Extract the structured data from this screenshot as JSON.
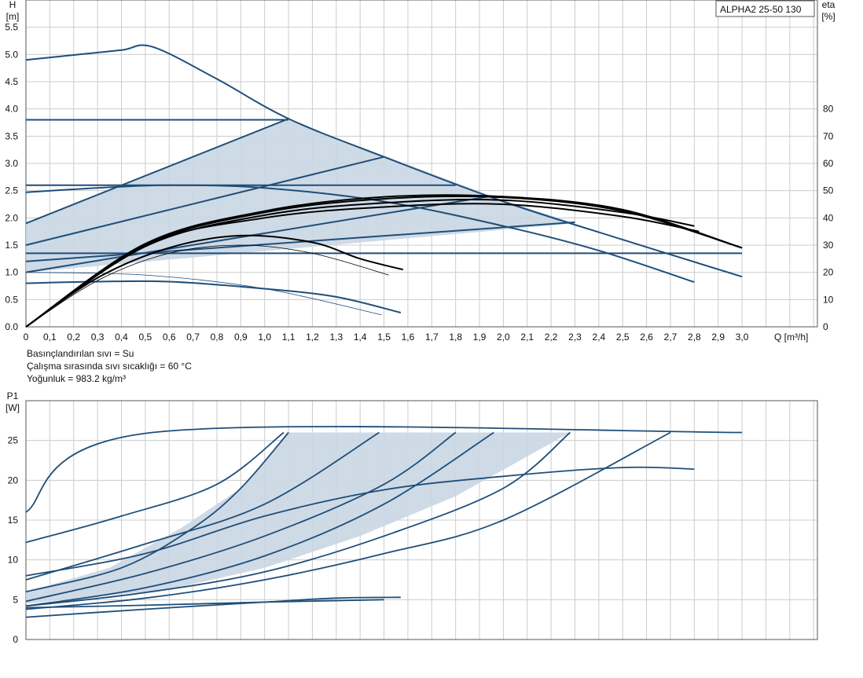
{
  "chart_data": [
    {
      "type": "line",
      "id": "head_efficiency",
      "badge": "ALPHA2 25-50 130",
      "ylabel_lines": [
        "H",
        "[m]"
      ],
      "y2label_lines": [
        "eta",
        "[%]"
      ],
      "xlabel": "Q [m³/h]",
      "xlim": [
        0,
        3.3
      ],
      "ylim": [
        0,
        6.0
      ],
      "y2lim": [
        0,
        120
      ],
      "x_ticks": [
        "0",
        "0,1",
        "0,2",
        "0,3",
        "0,4",
        "0,5",
        "0,6",
        "0,7",
        "0,8",
        "0,9",
        "1,0",
        "1,1",
        "1,2",
        "1,3",
        "1,4",
        "1,5",
        "1,6",
        "1,7",
        "1,8",
        "1,9",
        "2,0",
        "2,1",
        "2,2",
        "2,3",
        "2,4",
        "2,5",
        "2,6",
        "2,7",
        "2,8",
        "2,9",
        "3,0"
      ],
      "y_ticks": [
        "0.0",
        "0.5",
        "1.0",
        "1.5",
        "2.0",
        "2.5",
        "3.0",
        "3.5",
        "4.0",
        "4.5",
        "5.0",
        "5.5"
      ],
      "y2_ticks": [
        "0",
        "10",
        "20",
        "30",
        "40",
        "50",
        "60",
        "70",
        "80"
      ],
      "grid": true,
      "notes": [
        "Basınçlandırılan sıvı = Su",
        "Çalışma sırasında sıvı sıcaklığı = 60 °C",
        "Yoğunluk = 983.2 kg/m³"
      ],
      "colors": {
        "curve": "#1f4e79",
        "shade": "#c9d6e3",
        "efficiency": "#000000",
        "grid": "#cccccc"
      },
      "shaded_region": [
        [
          0,
          1.9
        ],
        [
          1.1,
          3.8
        ],
        [
          1.95,
          2.4
        ],
        [
          2.3,
          1.9
        ],
        [
          0,
          1.0
        ]
      ],
      "series": [
        {
          "kind": "head",
          "points": [
            [
              0,
              4.9
            ],
            [
              0.2,
              4.99
            ],
            [
              0.4,
              5.08
            ],
            [
              0.53,
              5.14
            ],
            [
              0.8,
              4.55
            ],
            [
              1.1,
              3.82
            ],
            [
              1.5,
              3.12
            ],
            [
              2.0,
              2.3
            ],
            [
              2.5,
              1.6
            ],
            [
              3.0,
              0.92
            ]
          ]
        },
        {
          "kind": "head",
          "points": [
            [
              0,
              1.9
            ],
            [
              1.1,
              3.82
            ]
          ]
        },
        {
          "kind": "head",
          "points": [
            [
              0,
              3.8
            ],
            [
              1.1,
              3.8
            ]
          ]
        },
        {
          "kind": "head",
          "points": [
            [
              0,
              1.5
            ],
            [
              1.5,
              3.12
            ]
          ]
        },
        {
          "kind": "head",
          "points": [
            [
              0,
              1.2
            ],
            [
              2.3,
              1.92
            ]
          ]
        },
        {
          "kind": "head",
          "points": [
            [
              0,
              1.0
            ],
            [
              1.95,
              2.4
            ]
          ]
        },
        {
          "kind": "head",
          "points": [
            [
              0,
              2.6
            ],
            [
              1.8,
              2.6
            ]
          ]
        },
        {
          "kind": "head",
          "points": [
            [
              0,
              1.35
            ],
            [
              3.0,
              1.35
            ]
          ]
        },
        {
          "kind": "head",
          "points": [
            [
              0,
              2.47
            ],
            [
              0.3,
              2.55
            ],
            [
              0.6,
              2.6
            ],
            [
              1.0,
              2.55
            ],
            [
              1.5,
              2.3
            ],
            [
              2.0,
              1.85
            ],
            [
              2.4,
              1.4
            ],
            [
              2.8,
              0.82
            ]
          ]
        },
        {
          "kind": "head",
          "points": [
            [
              0,
              0.8
            ],
            [
              0.3,
              0.83
            ],
            [
              0.6,
              0.83
            ],
            [
              1.0,
              0.7
            ],
            [
              1.3,
              0.55
            ],
            [
              1.57,
              0.26
            ]
          ]
        },
        {
          "kind": "head_thin",
          "points": [
            [
              0,
              1.0
            ],
            [
              0.5,
              0.95
            ],
            [
              1.0,
              0.7
            ],
            [
              1.49,
              0.22
            ]
          ]
        },
        {
          "kind": "efficiency",
          "points": [
            [
              0,
              0
            ],
            [
              0.3,
              18
            ],
            [
              0.6,
              29
            ],
            [
              0.9,
              33.5
            ],
            [
              1.2,
              31
            ],
            [
              1.4,
              25
            ],
            [
              1.58,
              21
            ]
          ]
        },
        {
          "kind": "efficiency_thin",
          "points": [
            [
              0,
              0
            ],
            [
              0.3,
              17
            ],
            [
              0.6,
              27
            ],
            [
              0.9,
              30
            ],
            [
              1.2,
              27
            ],
            [
              1.52,
              19
            ]
          ]
        },
        {
          "kind": "efficiency",
          "points": [
            [
              0,
              0
            ],
            [
              0.5,
              30
            ],
            [
              1.0,
              40
            ],
            [
              1.5,
              44
            ],
            [
              2.0,
              45
            ],
            [
              2.5,
              40.5
            ],
            [
              2.82,
              35
            ]
          ]
        },
        {
          "kind": "efficiency",
          "points": [
            [
              0,
              0
            ],
            [
              0.5,
              29.5
            ],
            [
              1.0,
              41
            ],
            [
              1.5,
              45.5
            ],
            [
              2.0,
              46.5
            ],
            [
              2.5,
              42
            ],
            [
              2.8,
              37
            ]
          ]
        },
        {
          "kind": "efficiency",
          "points": [
            [
              0,
              0
            ],
            [
              0.5,
              30
            ],
            [
              1.0,
              42
            ],
            [
              1.5,
              47
            ],
            [
              2.0,
              47.5
            ],
            [
              2.5,
              42.5
            ],
            [
              3.0,
              29
            ]
          ]
        },
        {
          "kind": "efficiency",
          "points": [
            [
              0,
              0
            ],
            [
              0.5,
              30.5
            ],
            [
              1.0,
              42.5
            ],
            [
              1.5,
              47.7
            ],
            [
              2.0,
              47.8
            ],
            [
              2.5,
              43
            ],
            [
              3.0,
              29
            ]
          ]
        }
      ]
    },
    {
      "type": "line",
      "id": "power",
      "ylabel_lines": [
        "P1",
        "[W]"
      ],
      "xlim": [
        0,
        3.3
      ],
      "ylim": [
        0,
        30
      ],
      "y_ticks": [
        "0",
        "5",
        "10",
        "15",
        "20",
        "25"
      ],
      "grid": true,
      "colors": {
        "curve": "#1f4e79",
        "shade": "#c9d6e3",
        "grid": "#cccccc"
      },
      "shaded_region": [
        [
          0,
          6
        ],
        [
          0.35,
          9
        ],
        [
          0.65,
          14
        ],
        [
          0.9,
          19
        ],
        [
          1.1,
          26
        ],
        [
          2.28,
          26
        ],
        [
          1.8,
          18
        ],
        [
          1.4,
          13
        ],
        [
          1.0,
          9
        ],
        [
          0.6,
          6.3
        ],
        [
          0,
          4.5
        ]
      ],
      "series": [
        {
          "points": [
            [
              0,
              16
            ],
            [
              0.53,
              26
            ],
            [
              3.0,
              26
            ]
          ]
        },
        {
          "points": [
            [
              0,
              12.2
            ],
            [
              0.4,
              15.5
            ],
            [
              0.8,
              19.5
            ],
            [
              1.08,
              26
            ]
          ]
        },
        {
          "points": [
            [
              0,
              6
            ],
            [
              0.4,
              9
            ],
            [
              0.7,
              14
            ],
            [
              0.9,
              19
            ],
            [
              1.1,
              26
            ]
          ]
        },
        {
          "points": [
            [
              0,
              7.5
            ],
            [
              0.5,
              12
            ],
            [
              1.0,
              17
            ],
            [
              1.48,
              26
            ]
          ]
        },
        {
          "points": [
            [
              0,
              4.8
            ],
            [
              0.5,
              8.3
            ],
            [
              1.0,
              13
            ],
            [
              1.5,
              19.5
            ],
            [
              1.8,
              26
            ]
          ]
        },
        {
          "points": [
            [
              0,
              4.2
            ],
            [
              0.5,
              6.5
            ],
            [
              1.0,
              10.5
            ],
            [
              1.5,
              17
            ],
            [
              1.96,
              26
            ]
          ]
        },
        {
          "points": [
            [
              0,
              4.2
            ],
            [
              0.5,
              5.9
            ],
            [
              1.0,
              8.5
            ],
            [
              1.5,
              13
            ],
            [
              2.0,
              19
            ],
            [
              2.28,
              26
            ]
          ]
        },
        {
          "points": [
            [
              0,
              3.8
            ],
            [
              0.5,
              5.2
            ],
            [
              1.0,
              7.5
            ],
            [
              1.5,
              10.8
            ],
            [
              2.0,
              15
            ],
            [
              2.7,
              26
            ]
          ]
        },
        {
          "points": [
            [
              0,
              8
            ],
            [
              0.5,
              10.8
            ],
            [
              1.0,
              15.5
            ],
            [
              1.5,
              18.8
            ],
            [
              2.0,
              20.5
            ],
            [
              2.5,
              21.6
            ],
            [
              2.8,
              21.4
            ]
          ]
        },
        {
          "points": [
            [
              0,
              2.8
            ],
            [
              0.5,
              3.8
            ],
            [
              1.0,
              4.7
            ],
            [
              1.3,
              5.2
            ],
            [
              1.57,
              5.3
            ]
          ]
        },
        {
          "points": [
            [
              0,
              4
            ],
            [
              0.5,
              4.3
            ],
            [
              1.0,
              4.7
            ],
            [
              1.5,
              5.0
            ]
          ]
        }
      ]
    }
  ]
}
